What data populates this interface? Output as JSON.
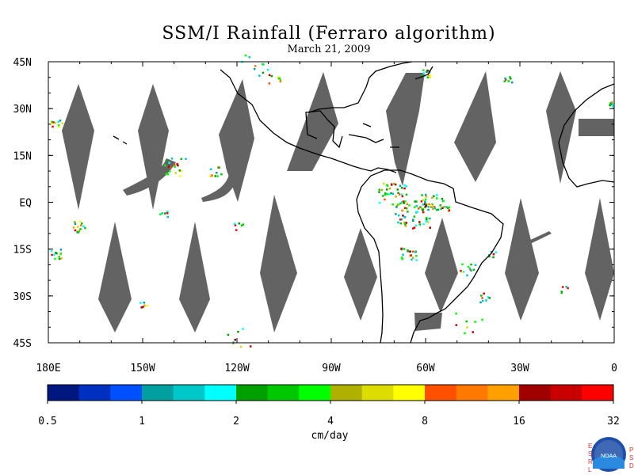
{
  "title": "SSM/I Rainfall (Ferraro algorithm)",
  "subtitle": "March 21, 2009",
  "map": {
    "lon_range": [
      -180,
      0
    ],
    "lat_range": [
      -45,
      45
    ],
    "lat_ticks": [
      {
        "lat": 45,
        "label": "45N"
      },
      {
        "lat": 30,
        "label": "30N"
      },
      {
        "lat": 15,
        "label": "15N"
      },
      {
        "lat": 0,
        "label": "EQ"
      },
      {
        "lat": -15,
        "label": "15S"
      },
      {
        "lat": -30,
        "label": "30S"
      },
      {
        "lat": -45,
        "label": "45S"
      }
    ],
    "lon_ticks": [
      {
        "lon": -180,
        "label": "180E"
      },
      {
        "lon": -150,
        "label": "150W"
      },
      {
        "lon": -120,
        "label": "120W"
      },
      {
        "lon": -90,
        "label": "90W"
      },
      {
        "lon": -60,
        "label": "60W"
      },
      {
        "lon": -30,
        "label": "30W"
      },
      {
        "lon": 0,
        "label": "0"
      }
    ],
    "no_data_color": "#636363",
    "coast_color": "#000000"
  },
  "colorbar": {
    "unit": "cm/day",
    "colors": [
      "#001780",
      "#0030c0",
      "#0050ff",
      "#00a0a0",
      "#00c8c8",
      "#00ffff",
      "#00a000",
      "#00c800",
      "#00ff00",
      "#b0b000",
      "#dcdc00",
      "#ffff00",
      "#ff5000",
      "#ff7800",
      "#ffa000",
      "#a00000",
      "#c80000",
      "#ff0000"
    ],
    "labels": [
      "0.5",
      "1",
      "2",
      "4",
      "8",
      "16",
      "32"
    ]
  },
  "logo": {
    "left_letters": [
      "E",
      "S",
      "R",
      "L"
    ],
    "right_letters": [
      "P",
      "S",
      "D"
    ],
    "center_text": "NOAA"
  }
}
